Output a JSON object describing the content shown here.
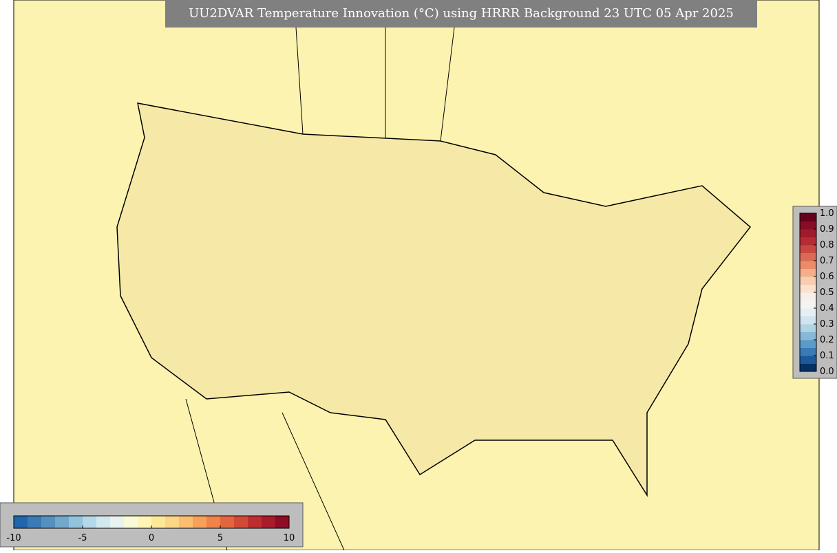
{
  "title": "UU2DVAR Temperature Innovation (°C) using HRRR Background 23 UTC 05 Apr 2025",
  "innovation_colorbar": {
    "xlim": [
      -10,
      10
    ],
    "xticks": [
      -10,
      -5,
      0,
      5,
      10
    ],
    "colors": [
      "#2166ac",
      "#3a7bb5",
      "#5591c0",
      "#72a8cc",
      "#93c2dc",
      "#b4d8e8",
      "#d2e8ef",
      "#e9f4f1",
      "#f8fbd6",
      "#fff6b5",
      "#fee99a",
      "#fdd586",
      "#fbbd6f",
      "#f7a15b",
      "#ef834a",
      "#e2663d",
      "#d24a35",
      "#bf2e2e",
      "#a71b2b",
      "#8c0d25"
    ]
  },
  "station_colorbar": {
    "ylim": [
      0,
      1
    ],
    "yticks": [
      {
        "value": 0,
        "label": "0.0"
      },
      0.1,
      0.2,
      0.3,
      0.4,
      0.5,
      0.6,
      0.7,
      0.8,
      0.9,
      {
        "value": 1,
        "label": "1.0"
      }
    ],
    "colors": [
      "#053061",
      "#1d5a9b",
      "#3a7bb5",
      "#5a9bc8",
      "#86b8d8",
      "#afd2e5",
      "#d0e4ef",
      "#e6eff4",
      "#f4f4f4",
      "#f8efe8",
      "#fbe2cf",
      "#f9cdb0",
      "#f4ae8a",
      "#e98c69",
      "#da6a53",
      "#c84840",
      "#b52a33",
      "#9f1a2b",
      "#860d24",
      "#67001f"
    ]
  }
}
